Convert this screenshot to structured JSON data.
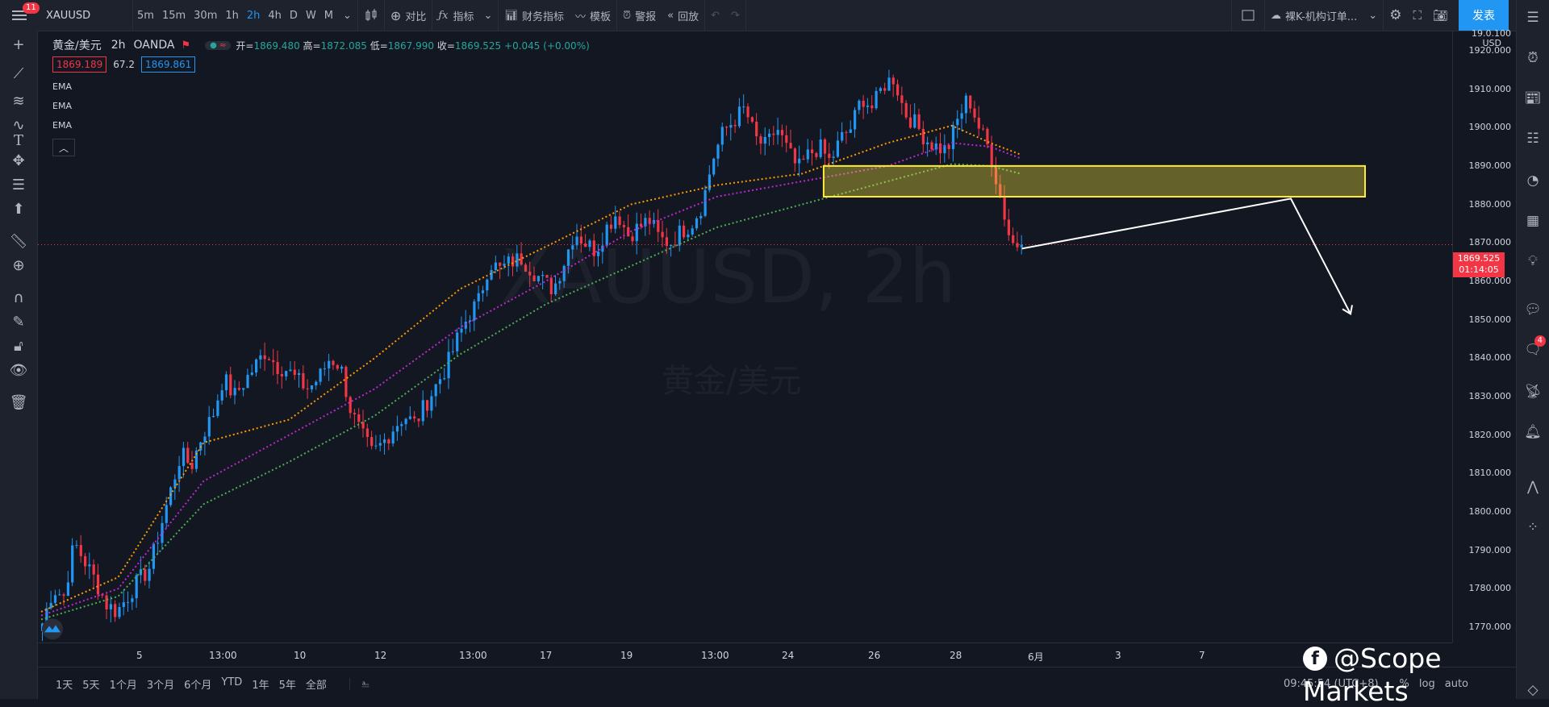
{
  "topbar": {
    "menu_badge": "11",
    "symbol": "XAUUSD",
    "intervals": [
      "5m",
      "15m",
      "30m",
      "1h",
      "2h",
      "4h",
      "D",
      "W",
      "M"
    ],
    "active_interval": "2h",
    "compare_label": "对比",
    "indicators_label": "指标",
    "financials_label": "财务指标",
    "templates_label": "模板",
    "alert_label": "警报",
    "replay_label": "回放",
    "layout_name": "裸K-机构订单...",
    "publish_label": "发表"
  },
  "legend": {
    "title": "黄金/美元",
    "interval": "2h",
    "exchange": "OANDA",
    "open_key": "开=",
    "open": "1869.480",
    "high_key": "高=",
    "high": "1872.085",
    "low_key": "低=",
    "low": "1867.990",
    "close_key": "收=",
    "close": "1869.525",
    "change": "+0.045 (+0.00%)",
    "bid": "1869.189",
    "spread": "67.2",
    "ask": "1869.861",
    "ema_labels": [
      "EMA",
      "EMA",
      "EMA"
    ]
  },
  "watermark": {
    "symbol": "XAUUSD, 2h",
    "name": "黄金/美元"
  },
  "price_axis": {
    "currency": "USD",
    "top_label": "19.0.100",
    "ticks": [
      "1920.000",
      "1910.000",
      "1900.000",
      "1890.000",
      "1880.000",
      "1870.000",
      "1860.000",
      "1850.000",
      "1840.000",
      "1830.000",
      "1820.000",
      "1810.000",
      "1800.000",
      "1790.000",
      "1780.000",
      "1770.000"
    ],
    "current_price": "1869.525",
    "countdown": "01:14:05"
  },
  "time_axis": {
    "ticks": [
      "5",
      "13:00",
      "10",
      "12",
      "13:00",
      "17",
      "19",
      "13:00",
      "24",
      "26",
      "28",
      "6月",
      "3",
      "7"
    ]
  },
  "bottombar": {
    "ranges": [
      "1天",
      "5天",
      "1个月",
      "3个月",
      "6个月",
      "YTD",
      "1年",
      "5年",
      "全部"
    ],
    "timestamp": "09:45:54 (UTC+8)",
    "percent": "%",
    "log": "log",
    "auto": "auto"
  },
  "brand": "@Scope Markets",
  "right_badge": "4",
  "colors": {
    "background": "#131722",
    "up": "#2196f3",
    "down": "#f23645",
    "ema_fast": "#ff9800",
    "ema_mid": "#c026d3",
    "ema_slow": "#4caf50",
    "zone": "#ffeb3b"
  },
  "chart_data": {
    "type": "candlestick",
    "symbol": "XAUUSD",
    "interval": "2h",
    "ylim": [
      1766,
      1925
    ],
    "x_ticks": [
      "5",
      "13:00",
      "10",
      "12",
      "13:00",
      "17",
      "19",
      "13:00",
      "24",
      "26",
      "28",
      "6月",
      "3",
      "7"
    ],
    "price_path": [
      1771,
      1780,
      1778,
      1792,
      1787,
      1782,
      1776,
      1774,
      1778,
      1782,
      1785,
      1795,
      1805,
      1815,
      1812,
      1820,
      1825,
      1835,
      1830,
      1834,
      1838,
      1842,
      1838,
      1837,
      1834,
      1832,
      1835,
      1840,
      1838,
      1826,
      1820,
      1815,
      1818,
      1822,
      1825,
      1823,
      1828,
      1833,
      1838,
      1845,
      1851,
      1855,
      1865,
      1863,
      1865,
      1866,
      1863,
      1860,
      1858,
      1865,
      1873,
      1870,
      1868,
      1874,
      1878,
      1872,
      1874,
      1876,
      1871,
      1870,
      1873,
      1875,
      1880,
      1892,
      1899,
      1902,
      1905,
      1897,
      1895,
      1900,
      1894,
      1889,
      1893,
      1895,
      1891,
      1897,
      1900,
      1908,
      1905,
      1911,
      1913,
      1904,
      1901,
      1897,
      1895,
      1894,
      1902,
      1908,
      1900,
      1894,
      1882,
      1870,
      1869.5
    ],
    "ema_fast": [
      [
        0,
        1774
      ],
      [
        18,
        1783
      ],
      [
        38,
        1818
      ],
      [
        58,
        1824
      ],
      [
        78,
        1840
      ],
      [
        98,
        1858
      ],
      [
        118,
        1869
      ],
      [
        138,
        1880
      ],
      [
        158,
        1885
      ],
      [
        178,
        1888
      ],
      [
        198,
        1896
      ],
      [
        213,
        1900.5
      ],
      [
        222,
        1896
      ],
      [
        229,
        1893
      ]
    ],
    "ema_mid": [
      [
        0,
        1773
      ],
      [
        18,
        1780
      ],
      [
        38,
        1808
      ],
      [
        58,
        1820
      ],
      [
        78,
        1832
      ],
      [
        98,
        1848
      ],
      [
        118,
        1860
      ],
      [
        138,
        1873
      ],
      [
        158,
        1882
      ],
      [
        178,
        1886
      ],
      [
        198,
        1890
      ],
      [
        213,
        1896
      ],
      [
        222,
        1895
      ],
      [
        229,
        1892
      ]
    ],
    "ema_slow": [
      [
        0,
        1772
      ],
      [
        18,
        1778
      ],
      [
        38,
        1802
      ],
      [
        58,
        1813
      ],
      [
        78,
        1825
      ],
      [
        98,
        1841
      ],
      [
        118,
        1854
      ],
      [
        138,
        1864
      ],
      [
        158,
        1874
      ],
      [
        178,
        1880
      ],
      [
        198,
        1886
      ],
      [
        213,
        1890.5
      ],
      [
        222,
        1890
      ],
      [
        229,
        1888
      ]
    ],
    "zone": {
      "price_top": 1890,
      "price_bottom": 1882
    },
    "current_price": 1869.525
  }
}
